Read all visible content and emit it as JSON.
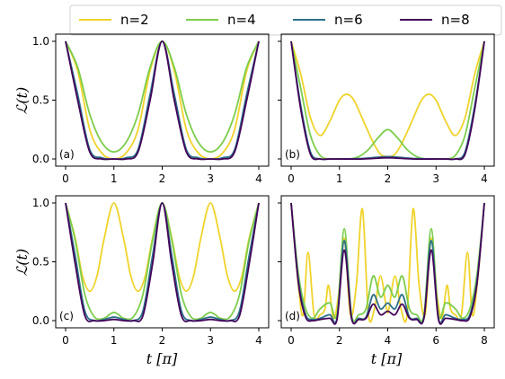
{
  "legend": [
    {
      "label": "n=2",
      "color": "#f0d32a"
    },
    {
      "label": "n=4",
      "color": "#7ccd4c"
    },
    {
      "label": "n=6",
      "color": "#2c7089"
    },
    {
      "label": "n=8",
      "color": "#43045a"
    }
  ],
  "ylabel": "ℒ(t)",
  "xlabel": "t [π]",
  "chart_data": [
    {
      "type": "line",
      "panel_label": "(a)",
      "x_range_pi": [
        0,
        4
      ],
      "xticks": [
        "0",
        "1",
        "2",
        "3",
        "4"
      ],
      "ylim": [
        0,
        1
      ],
      "yticks": [
        "0.0",
        "0.5",
        "1.0"
      ],
      "series": [
        {
          "name": "n=2",
          "x": [
            0,
            0.25,
            0.5,
            0.75,
            1,
            1.25,
            1.5,
            1.75,
            2,
            2.25,
            2.5,
            2.75,
            3,
            3.25,
            3.5,
            3.75,
            4
          ],
          "values": [
            1,
            0.75,
            0.25,
            0.05,
            0,
            0.05,
            0.25,
            0.75,
            1,
            0.75,
            0.25,
            0.05,
            0,
            0.05,
            0.25,
            0.75,
            1
          ]
        },
        {
          "name": "n=4",
          "x": [
            0,
            0.25,
            0.5,
            0.75,
            1,
            1.25,
            1.5,
            1.75,
            2,
            2.25,
            2.5,
            2.75,
            3,
            3.25,
            3.5,
            3.75,
            4
          ],
          "values": [
            1,
            0.78,
            0.38,
            0.14,
            0.06,
            0.14,
            0.38,
            0.78,
            1,
            0.78,
            0.38,
            0.14,
            0.06,
            0.14,
            0.38,
            0.78,
            1
          ]
        },
        {
          "name": "n=6",
          "x": [
            0,
            0.25,
            0.5,
            0.75,
            1,
            1.25,
            1.5,
            1.75,
            2,
            2.25,
            2.5,
            2.75,
            3,
            3.25,
            3.5,
            3.75,
            4
          ],
          "values": [
            1,
            0.55,
            0.08,
            0.01,
            0,
            0.01,
            0.08,
            0.55,
            1,
            0.55,
            0.08,
            0.01,
            0,
            0.01,
            0.08,
            0.55,
            1
          ]
        },
        {
          "name": "n=8",
          "x": [
            0,
            0.25,
            0.5,
            0.75,
            1,
            1.25,
            1.5,
            1.75,
            2,
            2.25,
            2.5,
            2.75,
            3,
            3.25,
            3.5,
            3.75,
            4
          ],
          "values": [
            1,
            0.5,
            0.06,
            0,
            0,
            0,
            0.06,
            0.5,
            1,
            0.5,
            0.06,
            0,
            0,
            0,
            0.06,
            0.5,
            1
          ]
        }
      ]
    },
    {
      "type": "line",
      "panel_label": "(b)",
      "x_range_pi": [
        0,
        4
      ],
      "xticks": [
        "0",
        "1",
        "2",
        "3",
        "4"
      ],
      "ylim": [
        0,
        1
      ],
      "yticks": [],
      "series": [
        {
          "name": "n=2",
          "x": [
            0,
            0.2,
            0.4,
            0.6,
            0.8,
            1,
            1.15,
            1.3,
            1.5,
            1.7,
            1.85,
            2,
            2.15,
            2.3,
            2.5,
            2.7,
            2.85,
            3,
            3.2,
            3.4,
            3.6,
            3.8,
            4
          ],
          "values": [
            1,
            0.72,
            0.35,
            0.2,
            0.32,
            0.5,
            0.55,
            0.5,
            0.32,
            0.14,
            0.04,
            0.02,
            0.04,
            0.14,
            0.32,
            0.5,
            0.55,
            0.5,
            0.32,
            0.2,
            0.35,
            0.72,
            1
          ]
        },
        {
          "name": "n=4",
          "x": [
            0,
            0.2,
            0.4,
            0.6,
            0.8,
            1,
            1.2,
            1.4,
            1.6,
            1.8,
            2,
            2.2,
            2.4,
            2.6,
            2.8,
            3,
            3.2,
            3.4,
            3.6,
            3.8,
            4
          ],
          "values": [
            1,
            0.6,
            0.2,
            0.03,
            0,
            0,
            0,
            0.02,
            0.08,
            0.18,
            0.25,
            0.18,
            0.08,
            0.02,
            0,
            0,
            0,
            0.03,
            0.2,
            0.6,
            1
          ]
        },
        {
          "name": "n=6",
          "x": [
            0,
            0.2,
            0.4,
            0.6,
            0.8,
            1,
            1.5,
            2,
            2.5,
            3,
            3.2,
            3.4,
            3.6,
            3.8,
            4
          ],
          "values": [
            1,
            0.45,
            0.06,
            0,
            0,
            0,
            0.005,
            0.02,
            0.005,
            0,
            0,
            0,
            0.06,
            0.45,
            1
          ]
        },
        {
          "name": "n=8",
          "x": [
            0,
            0.2,
            0.4,
            0.6,
            0.8,
            1,
            1.5,
            2,
            2.5,
            3,
            3.2,
            3.4,
            3.6,
            3.8,
            4
          ],
          "values": [
            1,
            0.42,
            0.04,
            0,
            0,
            0,
            0,
            0.01,
            0,
            0,
            0,
            0,
            0.04,
            0.42,
            1
          ]
        }
      ]
    },
    {
      "type": "line",
      "panel_label": "(c)",
      "x_range_pi": [
        0,
        4
      ],
      "xticks": [
        "0",
        "1",
        "2",
        "3",
        "4"
      ],
      "ylim": [
        0,
        1
      ],
      "yticks": [
        "0.0",
        "0.5",
        "1.0"
      ],
      "series": [
        {
          "name": "n=2",
          "x": [
            0,
            0.2,
            0.35,
            0.5,
            0.65,
            0.8,
            1,
            1.2,
            1.35,
            1.5,
            1.65,
            1.8,
            2,
            2.2,
            2.35,
            2.5,
            2.65,
            2.8,
            3,
            3.2,
            3.35,
            3.5,
            3.65,
            3.8,
            4
          ],
          "values": [
            1,
            0.7,
            0.38,
            0.25,
            0.38,
            0.7,
            1,
            0.7,
            0.38,
            0.25,
            0.38,
            0.7,
            1,
            0.7,
            0.38,
            0.25,
            0.38,
            0.7,
            1,
            0.7,
            0.38,
            0.25,
            0.38,
            0.7,
            1
          ]
        },
        {
          "name": "n=4",
          "x": [
            0,
            0.2,
            0.4,
            0.6,
            0.8,
            0.9,
            1,
            1.1,
            1.2,
            1.4,
            1.6,
            1.8,
            2,
            2.2,
            2.4,
            2.6,
            2.8,
            2.9,
            3,
            3.1,
            3.2,
            3.4,
            3.6,
            3.8,
            4
          ],
          "values": [
            1,
            0.68,
            0.22,
            0.03,
            0.02,
            0.05,
            0.07,
            0.05,
            0.02,
            0.03,
            0.22,
            0.68,
            1,
            0.68,
            0.22,
            0.03,
            0.02,
            0.05,
            0.07,
            0.05,
            0.02,
            0.03,
            0.22,
            0.68,
            1
          ]
        },
        {
          "name": "n=6",
          "x": [
            0,
            0.2,
            0.4,
            0.6,
            0.8,
            1,
            1.2,
            1.4,
            1.6,
            1.8,
            2,
            2.2,
            2.4,
            2.6,
            2.8,
            3,
            3.2,
            3.4,
            3.6,
            3.8,
            4
          ],
          "values": [
            1,
            0.55,
            0.08,
            0,
            0.01,
            0.03,
            0.01,
            0,
            0.08,
            0.55,
            1,
            0.55,
            0.08,
            0,
            0.01,
            0.03,
            0.01,
            0,
            0.08,
            0.55,
            1
          ]
        },
        {
          "name": "n=8",
          "x": [
            0,
            0.2,
            0.4,
            0.6,
            0.8,
            1,
            1.2,
            1.4,
            1.6,
            1.8,
            2,
            2.2,
            2.4,
            2.6,
            2.8,
            3,
            3.2,
            3.4,
            3.6,
            3.8,
            4
          ],
          "values": [
            1,
            0.48,
            0.04,
            0,
            0,
            0.01,
            0,
            0,
            0.04,
            0.48,
            1,
            0.48,
            0.04,
            0,
            0,
            0.01,
            0,
            0,
            0.04,
            0.48,
            1
          ]
        }
      ]
    },
    {
      "type": "line",
      "panel_label": "(d)",
      "x_range_pi": [
        0,
        8
      ],
      "xticks": [
        "0",
        "2",
        "4",
        "6",
        "8"
      ],
      "ylim": [
        0,
        1
      ],
      "yticks": [],
      "series": [
        {
          "name": "n=2",
          "x": [
            0,
            0.3,
            0.5,
            0.7,
            0.95,
            1.2,
            1.4,
            1.55,
            1.75,
            1.95,
            2.2,
            2.45,
            2.7,
            2.95,
            3.2,
            3.45,
            3.7,
            3.95,
            4.05,
            4.3,
            4.55,
            4.8,
            5.05,
            5.3,
            5.55,
            5.8,
            6.05,
            6.25,
            6.45,
            6.6,
            6.8,
            7.05,
            7.3,
            7.5,
            7.7,
            8
          ],
          "values": [
            1,
            0.3,
            0.05,
            0.58,
            0.05,
            0.05,
            0.1,
            0.3,
            0.02,
            0.2,
            0.7,
            0.05,
            0.3,
            0.95,
            0.05,
            0.1,
            0.38,
            0.1,
            0.1,
            0.38,
            0.1,
            0.05,
            0.95,
            0.3,
            0.05,
            0.7,
            0.2,
            0.02,
            0.3,
            0.1,
            0.05,
            0.05,
            0.58,
            0.05,
            0.3,
            1
          ]
        },
        {
          "name": "n=4",
          "x": [
            0,
            0.3,
            0.6,
            0.9,
            1.2,
            1.6,
            1.9,
            2.2,
            2.5,
            2.8,
            3.1,
            3.4,
            3.7,
            4,
            4.3,
            4.6,
            4.9,
            5.2,
            5.5,
            5.8,
            6.1,
            6.4,
            6.8,
            7.1,
            7.4,
            7.7,
            8
          ],
          "values": [
            1,
            0.4,
            0.1,
            0.02,
            0.1,
            0.15,
            0.05,
            0.78,
            0.05,
            0.05,
            0.1,
            0.38,
            0.2,
            0.3,
            0.2,
            0.38,
            0.1,
            0.05,
            0.05,
            0.78,
            0.05,
            0.15,
            0.1,
            0.02,
            0.1,
            0.4,
            1
          ]
        },
        {
          "name": "n=6",
          "x": [
            0,
            0.3,
            0.6,
            0.9,
            1.2,
            1.6,
            1.9,
            2.2,
            2.5,
            2.8,
            3.1,
            3.4,
            3.7,
            4,
            4.3,
            4.6,
            4.9,
            5.2,
            5.5,
            5.8,
            6.1,
            6.4,
            6.8,
            7.1,
            7.4,
            7.7,
            8
          ],
          "values": [
            1,
            0.35,
            0.05,
            0.01,
            0.02,
            0.05,
            0.02,
            0.68,
            0.03,
            0.02,
            0.03,
            0.22,
            0.1,
            0.15,
            0.1,
            0.22,
            0.03,
            0.02,
            0.03,
            0.68,
            0.02,
            0.05,
            0.02,
            0.01,
            0.05,
            0.35,
            1
          ]
        },
        {
          "name": "n=8",
          "x": [
            0,
            0.3,
            0.6,
            0.9,
            1.2,
            1.6,
            1.9,
            2.2,
            2.5,
            2.8,
            3.1,
            3.4,
            3.7,
            4,
            4.3,
            4.6,
            4.9,
            5.2,
            5.5,
            5.8,
            6.1,
            6.4,
            6.8,
            7.1,
            7.4,
            7.7,
            8
          ],
          "values": [
            1,
            0.32,
            0.03,
            0,
            0.01,
            0.02,
            0.01,
            0.6,
            0.02,
            0.01,
            0.02,
            0.14,
            0.05,
            0.08,
            0.05,
            0.14,
            0.02,
            0.01,
            0.02,
            0.6,
            0.01,
            0.02,
            0.01,
            0,
            0.03,
            0.32,
            1
          ]
        }
      ]
    }
  ]
}
